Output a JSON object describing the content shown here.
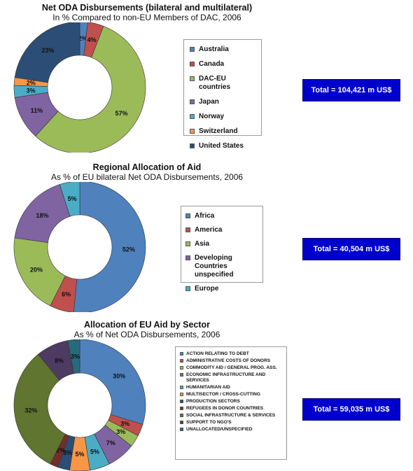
{
  "colors": {
    "australia": "#4f81bd",
    "canada": "#c0504d",
    "dac_eu": "#9bbb59",
    "japan": "#8064a2",
    "norway": "#4bacc6",
    "switzerland": "#f79646",
    "united_states": "#2c4d75",
    "total_box": "#0000cc"
  },
  "chart_data": [
    {
      "type": "pie",
      "donut": true,
      "title": "Net ODA Disbursements (bilateral and multilateral)",
      "subtitle": "In % Compared to non-EU Members of DAC, 2006",
      "series": [
        {
          "label": "Australia",
          "value": 2,
          "display": "2%",
          "color": "#4f81bd"
        },
        {
          "label": "Canada",
          "value": 4,
          "display": "4%",
          "color": "#c0504d"
        },
        {
          "label": "DAC-EU countries",
          "value": 57,
          "display": "57%",
          "color": "#9bbb59"
        },
        {
          "label": "Japan",
          "value": 11,
          "display": "11%",
          "color": "#8064a2"
        },
        {
          "label": "Norway",
          "value": 3,
          "display": "3%",
          "color": "#4bacc6"
        },
        {
          "label": "Switzerland",
          "value": 2,
          "display": "2%",
          "color": "#f79646"
        },
        {
          "label": "United States",
          "value": 23,
          "display": "23%",
          "color": "#2c4d75"
        }
      ],
      "legend_position": "right",
      "total": "Total = 104,421 m US$"
    },
    {
      "type": "pie",
      "donut": true,
      "title": "Regional Allocation of Aid",
      "subtitle": "As % of EU bilateral Net ODA Disbursements, 2006",
      "series": [
        {
          "label": "Africa",
          "value": 52,
          "display": "52%",
          "color": "#4f81bd"
        },
        {
          "label": "America",
          "value": 6,
          "display": "6%",
          "color": "#c0504d"
        },
        {
          "label": "Asia",
          "value": 20,
          "display": "20%",
          "color": "#9bbb59"
        },
        {
          "label": "Developing Countries unspecified",
          "value": 18,
          "display": "18%",
          "color": "#8064a2"
        },
        {
          "label": "Europe",
          "value": 5,
          "display": "5%",
          "color": "#4bacc6"
        }
      ],
      "legend_position": "right",
      "total": "Total = 40,504 m US$"
    },
    {
      "type": "pie",
      "donut": true,
      "title": "Allocation of EU Aid by Sector",
      "subtitle": "As % of Net ODA Disbursements, 2006",
      "series": [
        {
          "label": "ACTION RELATING TO DEBT",
          "value": 30,
          "display": "30%",
          "color": "#4f81bd"
        },
        {
          "label": "ADMINISTRATIVE COSTS OF DONORS",
          "value": 3,
          "display": "3%",
          "color": "#c0504d"
        },
        {
          "label": "COMMODITY AID / GENERAL PROG. ASS.",
          "value": 3,
          "display": "3%",
          "color": "#9bbb59"
        },
        {
          "label": "ECONOMIC INFRASTRUCTURE AND SERVICES",
          "value": 7,
          "display": "7%",
          "color": "#8064a2"
        },
        {
          "label": "HUMANITARIAN AID",
          "value": 5,
          "display": "5%",
          "color": "#4bacc6"
        },
        {
          "label": "MULTISECTOR / CROSS-CUTTING",
          "value": 5,
          "display": "5%",
          "color": "#f79646"
        },
        {
          "label": "PRODUCTION SECTORS",
          "value": 3,
          "display": "3%",
          "color": "#2c4d75"
        },
        {
          "label": "REFUGEES IN DONOR COUNTRIES",
          "value": 2,
          "display": "2%",
          "color": "#772c2a"
        },
        {
          "label": "SOCIAL INFRASTRUCTURE & SERVICES",
          "value": 32,
          "display": "32%",
          "color": "#5f7530"
        },
        {
          "label": "SUPPORT TO NGO'S",
          "value": 8,
          "display": "8%",
          "color": "#4d3b62"
        },
        {
          "label": "UNALLOCATED/UNSPECIFIED",
          "value": 3,
          "display": "3%",
          "color": "#276a7c"
        }
      ],
      "legend_position": "right",
      "total": "Total = 59,035 m US$"
    }
  ]
}
